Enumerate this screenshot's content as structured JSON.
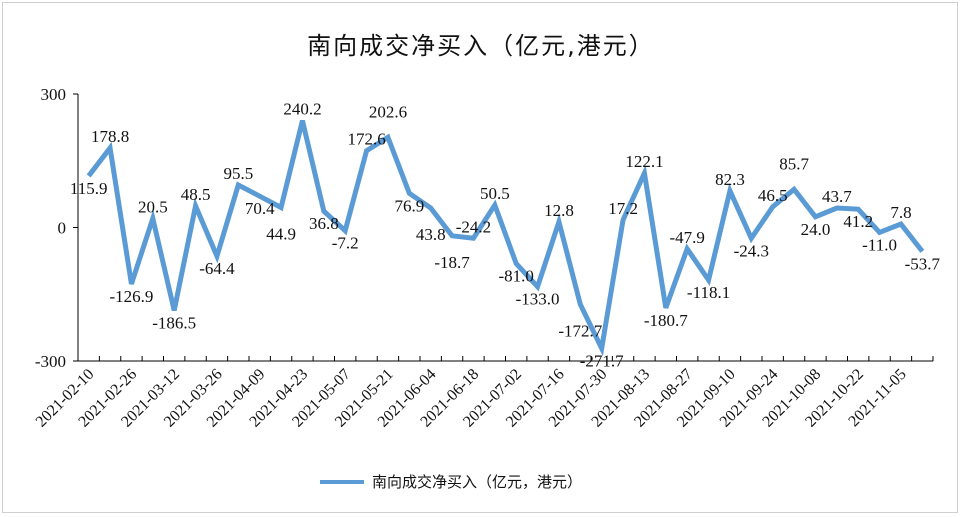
{
  "chart_data": {
    "type": "line",
    "title": "南向成交净买入（亿元,港元）",
    "xlabel": "",
    "ylabel": "",
    "ylim": [
      -300,
      300
    ],
    "yticks": [
      "300",
      "0",
      "-300"
    ],
    "xtick_labels": [
      "2021-02-10",
      "2021-02-26",
      "2021-03-12",
      "2021-03-26",
      "2021-04-09",
      "2021-04-23",
      "2021-05-07",
      "2021-05-21",
      "2021-06-04",
      "2021-06-18",
      "2021-07-02",
      "2021-07-16",
      "2021-07-30",
      "2021-08-13",
      "2021-08-27",
      "2021-09-10",
      "2021-09-24",
      "2021-10-08",
      "2021-10-22",
      "2021-11-05"
    ],
    "legend": "bottom",
    "color": "#5b9bd5",
    "series": [
      {
        "name": "南向成交净买入（亿元，港元）",
        "values": [
          115.9,
          178.8,
          -126.9,
          20.5,
          -186.5,
          48.5,
          -64.4,
          95.5,
          70.4,
          44.9,
          240.2,
          36.8,
          -7.2,
          172.6,
          202.6,
          76.9,
          43.8,
          -18.7,
          -24.2,
          50.5,
          -81.0,
          -133.0,
          12.8,
          -172.7,
          -271.7,
          17.2,
          122.1,
          -180.7,
          -47.9,
          -118.1,
          82.3,
          -24.3,
          46.5,
          85.7,
          24.0,
          43.7,
          41.2,
          -11.0,
          7.8,
          -53.7
        ]
      }
    ]
  }
}
